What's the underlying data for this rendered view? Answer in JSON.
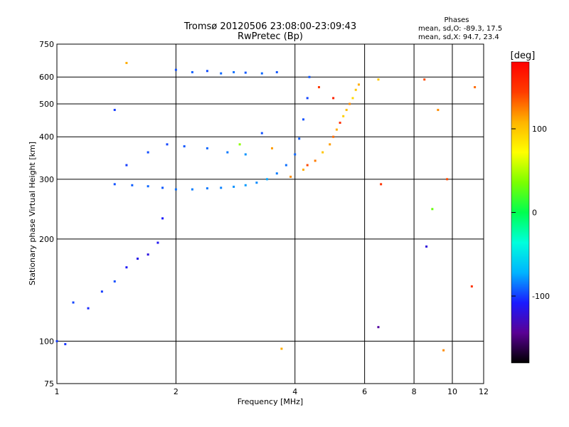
{
  "chart_data": {
    "type": "scatter",
    "title": "Tromsø 20120506 23:08:00-23:09:43",
    "subtitle": "RwPretec (Bp)",
    "xlabel": "Frequency [MHz]",
    "ylabel": "Stationary phase Virtual Height [km]",
    "x_scale": "log",
    "y_scale": "log",
    "xlim": [
      1,
      12
    ],
    "ylim": [
      75,
      750
    ],
    "x_ticks": [
      1,
      2,
      4,
      6,
      8,
      10,
      12
    ],
    "y_ticks": [
      75,
      100,
      200,
      300,
      400,
      500,
      600,
      750
    ],
    "grid_x": [
      2,
      4,
      6,
      8,
      10
    ],
    "grid_y": [
      100,
      200,
      300,
      400,
      500,
      600
    ],
    "phases_box": {
      "title": "Phases",
      "line1": "mean, sd,O:  -89.3, 17.5",
      "line2": "mean, sd,X:  94.7, 23.4"
    },
    "colorbar": {
      "label": "[deg]",
      "range": [
        -180,
        180
      ],
      "ticks": [
        {
          "value": 100,
          "label": "100"
        },
        {
          "value": 0,
          "label": "0"
        },
        {
          "value": -100,
          "label": "-100"
        }
      ],
      "colors": [
        "#000000",
        "#5a0094",
        "#1a1aff",
        "#00b4ff",
        "#00ffdc",
        "#00ff50",
        "#7cff00",
        "#ffff00",
        "#ffb400",
        "#ff3c00",
        "#ff0000"
      ]
    },
    "series": [
      {
        "values": [
          {
            "x": 1.4,
            "y": 290,
            "phase": -95
          },
          {
            "x": 1.55,
            "y": 288,
            "phase": -92
          },
          {
            "x": 1.7,
            "y": 286,
            "phase": -90
          },
          {
            "x": 1.85,
            "y": 283,
            "phase": -93
          },
          {
            "x": 2.0,
            "y": 280,
            "phase": -88
          },
          {
            "x": 2.2,
            "y": 280,
            "phase": -85
          },
          {
            "x": 2.4,
            "y": 282,
            "phase": -86
          },
          {
            "x": 2.6,
            "y": 283,
            "phase": -84
          },
          {
            "x": 2.8,
            "y": 285,
            "phase": -80
          },
          {
            "x": 3.0,
            "y": 288,
            "phase": -78
          },
          {
            "x": 3.2,
            "y": 293,
            "phase": -82
          },
          {
            "x": 3.4,
            "y": 300,
            "phase": -75
          },
          {
            "x": 3.6,
            "y": 312,
            "phase": -85
          },
          {
            "x": 3.8,
            "y": 330,
            "phase": -88
          },
          {
            "x": 4.0,
            "y": 355,
            "phase": -90
          },
          {
            "x": 4.1,
            "y": 395,
            "phase": -92
          },
          {
            "x": 4.2,
            "y": 450,
            "phase": -95
          },
          {
            "x": 4.3,
            "y": 520,
            "phase": -98
          },
          {
            "x": 4.35,
            "y": 600,
            "phase": -94
          },
          {
            "x": 1.5,
            "y": 330,
            "phase": -100
          },
          {
            "x": 1.7,
            "y": 360,
            "phase": -96
          },
          {
            "x": 1.9,
            "y": 380,
            "phase": -98
          },
          {
            "x": 2.1,
            "y": 375,
            "phase": -94
          },
          {
            "x": 2.4,
            "y": 370,
            "phase": -90
          },
          {
            "x": 2.7,
            "y": 360,
            "phase": -86
          },
          {
            "x": 3.0,
            "y": 355,
            "phase": -80
          },
          {
            "x": 3.3,
            "y": 410,
            "phase": -95
          },
          {
            "x": 2.0,
            "y": 630,
            "phase": -95
          },
          {
            "x": 2.2,
            "y": 620,
            "phase": -92
          },
          {
            "x": 2.4,
            "y": 625,
            "phase": -96
          },
          {
            "x": 2.6,
            "y": 615,
            "phase": -90
          },
          {
            "x": 2.8,
            "y": 620,
            "phase": -88
          },
          {
            "x": 3.0,
            "y": 618,
            "phase": -93
          },
          {
            "x": 3.3,
            "y": 615,
            "phase": -90
          },
          {
            "x": 3.6,
            "y": 620,
            "phase": -94
          },
          {
            "x": 1.0,
            "y": 100,
            "phase": -100
          },
          {
            "x": 1.05,
            "y": 98,
            "phase": -102
          },
          {
            "x": 1.1,
            "y": 130,
            "phase": -98
          },
          {
            "x": 1.2,
            "y": 125,
            "phase": -105
          },
          {
            "x": 1.3,
            "y": 140,
            "phase": -100
          },
          {
            "x": 1.4,
            "y": 150,
            "phase": -96
          },
          {
            "x": 1.5,
            "y": 165,
            "phase": -110
          },
          {
            "x": 1.6,
            "y": 175,
            "phase": -115
          },
          {
            "x": 1.7,
            "y": 180,
            "phase": -118
          },
          {
            "x": 1.8,
            "y": 195,
            "phase": -112
          },
          {
            "x": 1.85,
            "y": 230,
            "phase": -108
          },
          {
            "x": 1.4,
            "y": 480,
            "phase": -100
          },
          {
            "x": 3.9,
            "y": 305,
            "phase": 120
          },
          {
            "x": 4.2,
            "y": 320,
            "phase": 110
          },
          {
            "x": 4.5,
            "y": 340,
            "phase": 125
          },
          {
            "x": 4.7,
            "y": 360,
            "phase": 100
          },
          {
            "x": 4.9,
            "y": 380,
            "phase": 115
          },
          {
            "x": 5.0,
            "y": 400,
            "phase": 130
          },
          {
            "x": 5.1,
            "y": 420,
            "phase": 110
          },
          {
            "x": 5.2,
            "y": 440,
            "phase": 150
          },
          {
            "x": 5.3,
            "y": 460,
            "phase": 95
          },
          {
            "x": 5.4,
            "y": 480,
            "phase": 105
          },
          {
            "x": 5.5,
            "y": 500,
            "phase": 120
          },
          {
            "x": 5.6,
            "y": 520,
            "phase": 90
          },
          {
            "x": 5.7,
            "y": 550,
            "phase": 100
          },
          {
            "x": 5.8,
            "y": 570,
            "phase": 110
          },
          {
            "x": 4.6,
            "y": 560,
            "phase": 145
          },
          {
            "x": 5.0,
            "y": 520,
            "phase": 160
          },
          {
            "x": 4.3,
            "y": 330,
            "phase": 140
          },
          {
            "x": 2.9,
            "y": 380,
            "phase": 40
          },
          {
            "x": 3.5,
            "y": 370,
            "phase": 115
          },
          {
            "x": 6.5,
            "y": 590,
            "phase": 100
          },
          {
            "x": 6.6,
            "y": 290,
            "phase": 150
          },
          {
            "x": 8.5,
            "y": 590,
            "phase": 140
          },
          {
            "x": 9.2,
            "y": 480,
            "phase": 120
          },
          {
            "x": 9.7,
            "y": 300,
            "phase": 140
          },
          {
            "x": 11.4,
            "y": 560,
            "phase": 130
          },
          {
            "x": 1.5,
            "y": 660,
            "phase": 110
          },
          {
            "x": 8.6,
            "y": 190,
            "phase": -120
          },
          {
            "x": 8.9,
            "y": 245,
            "phase": 30
          },
          {
            "x": 11.2,
            "y": 145,
            "phase": 150
          },
          {
            "x": 6.5,
            "y": 110,
            "phase": -140
          },
          {
            "x": 9.5,
            "y": 94,
            "phase": 120
          },
          {
            "x": 3.7,
            "y": 95,
            "phase": 110
          }
        ]
      }
    ]
  }
}
